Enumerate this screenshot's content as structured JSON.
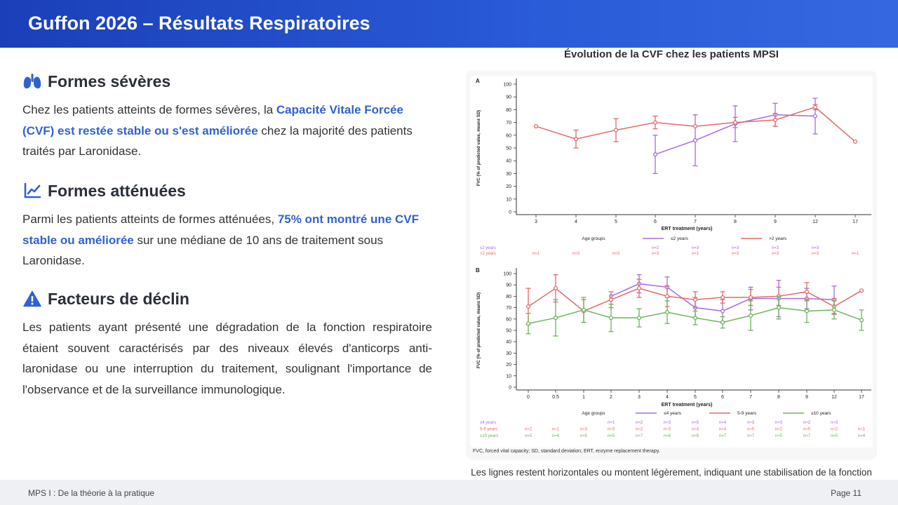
{
  "header": {
    "title": "Guffon 2026 – Résultats Respiratoires"
  },
  "sections": [
    {
      "title": "Formes sévères",
      "icon": "lungs-icon",
      "text_pre": "Chez les patients atteints de formes sévères, la ",
      "text_hl": "Capacité Vitale Forcée (CVF) est restée stable ou s'est améliorée",
      "text_post": " chez la majorité des patients traités par Laronidase."
    },
    {
      "title": "Formes atténuées",
      "icon": "chart-line-icon",
      "text_pre": "Parmi les patients atteints de formes atténuées, ",
      "text_hl": "75% ont montré une CVF stable ou améliorée",
      "text_post": " sur une médiane de 10 ans de traitement sous Laronidase."
    },
    {
      "title": "Facteurs de déclin",
      "icon": "warning-icon",
      "text": "Les patients ayant présenté une dégradation de la fonction respiratoire étaient souvent caractérisés par des niveaux élevés d'anticorps anti-laronidase ou une interruption du traitement, soulignant l'importance de l'observance et de la surveillance immunologique."
    }
  ],
  "chart_title": "Évolution de la CVF chez les patients MPSI",
  "caption": "Les lignes restent horizontales ou montent légèrement, indiquant une stabilisation de la fonction respiratoire",
  "footer": {
    "left": "MPS I : De la théorie à la pratique",
    "page": "Page 11"
  },
  "colors": {
    "purple": "#a86ae0",
    "red": "#e46a68",
    "green": "#6ab55a",
    "accent": "#2f62cf",
    "header": "#1b3fb8"
  },
  "chart_data": [
    {
      "panel": "A",
      "type": "line",
      "categories": [
        "3",
        "4",
        "5",
        "6",
        "7",
        "8",
        "9",
        "12",
        "17"
      ],
      "xlabel": "ERT treatment (years)",
      "ylabel": "FVC (% of predicted value, mean± SD)",
      "ylim": [
        0,
        100
      ],
      "yticks": [
        "0",
        "10",
        "20",
        "30",
        "40",
        "50",
        "60",
        "70",
        "80",
        "90",
        "100"
      ],
      "legend_title": "Age groups",
      "series": [
        {
          "name": "≤2 years",
          "color": "#a86ae0",
          "values": [
            null,
            null,
            null,
            45,
            56,
            69,
            76,
            75,
            null
          ],
          "sd": [
            null,
            null,
            null,
            15,
            20,
            14,
            9,
            14,
            null
          ],
          "n": [
            "",
            "",
            "",
            "n=2",
            "n=3",
            "n=3",
            "n=3",
            "n=3",
            ""
          ]
        },
        {
          "name": ">2 years",
          "color": "#e46a68",
          "values": [
            67,
            57,
            64,
            70,
            67,
            70,
            72,
            82,
            55
          ],
          "sd": [
            null,
            7,
            9,
            5,
            null,
            4,
            5,
            2,
            null
          ],
          "n": [
            "n=1",
            "n=3",
            "n=3",
            "n=3",
            "n=1",
            "n=3",
            "n=3",
            "n=3",
            "n=1"
          ]
        }
      ]
    },
    {
      "panel": "B",
      "type": "line",
      "categories": [
        "0",
        "0.5",
        "1",
        "2",
        "3",
        "4",
        "5",
        "6",
        "7",
        "8",
        "9",
        "12",
        "17"
      ],
      "xlabel": "ERT treatment (years)",
      "ylabel": "FVC (% of predicted value, mean± SD)",
      "ylim": [
        0,
        100
      ],
      "yticks": [
        "0",
        "10",
        "20",
        "30",
        "40",
        "50",
        "60",
        "70",
        "80",
        "90",
        "100"
      ],
      "legend_title": "Age groups",
      "series": [
        {
          "name": "≤4 years",
          "color": "#a86ae0",
          "values": [
            null,
            null,
            null,
            80,
            91,
            88,
            70,
            67,
            78,
            78,
            78,
            77,
            null
          ],
          "sd": [
            null,
            null,
            null,
            null,
            8,
            9,
            9,
            10,
            10,
            16,
            9,
            12,
            null
          ],
          "n": [
            "",
            "",
            "",
            "n=1",
            "n=2",
            "n=3",
            "n=5",
            "n=4",
            "n=3",
            "n=3",
            "n=2",
            "n=3",
            ""
          ]
        },
        {
          "name": "5-9 years",
          "color": "#e46a68",
          "values": [
            71,
            87,
            67,
            77,
            87,
            80,
            77,
            79,
            79,
            80,
            84,
            71,
            85
          ],
          "sd": [
            16,
            12,
            10,
            7,
            8,
            9,
            7,
            5,
            7,
            8,
            8,
            7,
            null
          ],
          "n": [
            "n=2",
            "n=1",
            "n=3",
            "n=3",
            "n=2",
            "n=3",
            "n=4",
            "n=4",
            "n=5",
            "n=2",
            "n=5",
            "n=2",
            "n=1"
          ]
        },
        {
          "name": "≥10 years",
          "color": "#6ab55a",
          "values": [
            56,
            61,
            68,
            61,
            61,
            66,
            61,
            57,
            63,
            70,
            67,
            68,
            59
          ],
          "sd": [
            9,
            16,
            11,
            12,
            8,
            10,
            6,
            5,
            13,
            10,
            10,
            8,
            9
          ],
          "n": [
            "n=5",
            "n=4",
            "n=5",
            "n=5",
            "n=7",
            "n=6",
            "n=8",
            "n=7",
            "n=7",
            "n=5",
            "n=7",
            "n=5",
            "n=4"
          ]
        }
      ]
    }
  ],
  "chart_footnote": "FVC, forced vital capacity; SD, standard deviation; ERT, enzyme replacement therapy."
}
